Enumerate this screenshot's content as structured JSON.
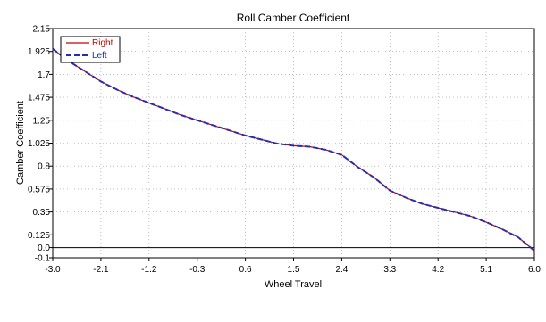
{
  "chart_data": {
    "type": "line",
    "title": "Roll Camber Coefficient",
    "xlabel": "Wheel Travel",
    "ylabel": "Camber Coefficient",
    "xlim": [
      -3.0,
      6.0
    ],
    "ylim": [
      -0.1,
      2.15
    ],
    "x_ticks": [
      "-3.0",
      "-2.1",
      "-1.2",
      "-0.3",
      "0.6",
      "1.5",
      "2.4",
      "3.3",
      "4.2",
      "5.1",
      "6.0"
    ],
    "y_ticks": [
      "-0.1",
      "0.0",
      "0.125",
      "0.35",
      "0.575",
      "0.8",
      "1.025",
      "1.25",
      "1.475",
      "1.7",
      "1.925",
      "2.15"
    ],
    "grid": true,
    "legend_position": "top-left",
    "series": [
      {
        "name": "Right",
        "color": "#cc0000",
        "dash": "solid",
        "x": [
          -3.0,
          -2.7,
          -2.4,
          -2.1,
          -1.8,
          -1.5,
          -1.2,
          -0.9,
          -0.6,
          -0.3,
          0.0,
          0.3,
          0.6,
          0.9,
          1.2,
          1.5,
          1.8,
          2.1,
          2.4,
          2.7,
          3.0,
          3.3,
          3.6,
          3.9,
          4.2,
          4.5,
          4.8,
          5.1,
          5.4,
          5.7,
          6.0
        ],
        "y": [
          1.95,
          1.83,
          1.73,
          1.63,
          1.55,
          1.48,
          1.42,
          1.36,
          1.3,
          1.25,
          1.2,
          1.15,
          1.1,
          1.06,
          1.02,
          1.0,
          0.99,
          0.96,
          0.91,
          0.79,
          0.69,
          0.56,
          0.49,
          0.43,
          0.39,
          0.35,
          0.31,
          0.25,
          0.18,
          0.1,
          -0.03
        ]
      },
      {
        "name": "Left",
        "color": "#1f2fb8",
        "dash": "dashed",
        "x": [
          -3.0,
          -2.7,
          -2.4,
          -2.1,
          -1.8,
          -1.5,
          -1.2,
          -0.9,
          -0.6,
          -0.3,
          0.0,
          0.3,
          0.6,
          0.9,
          1.2,
          1.5,
          1.8,
          2.1,
          2.4,
          2.7,
          3.0,
          3.3,
          3.6,
          3.9,
          4.2,
          4.5,
          4.8,
          5.1,
          5.4,
          5.7,
          6.0
        ],
        "y": [
          1.95,
          1.83,
          1.73,
          1.63,
          1.55,
          1.48,
          1.42,
          1.36,
          1.3,
          1.25,
          1.2,
          1.15,
          1.1,
          1.06,
          1.02,
          1.0,
          0.99,
          0.96,
          0.91,
          0.79,
          0.69,
          0.56,
          0.49,
          0.43,
          0.39,
          0.35,
          0.31,
          0.25,
          0.18,
          0.1,
          -0.03
        ]
      }
    ]
  }
}
